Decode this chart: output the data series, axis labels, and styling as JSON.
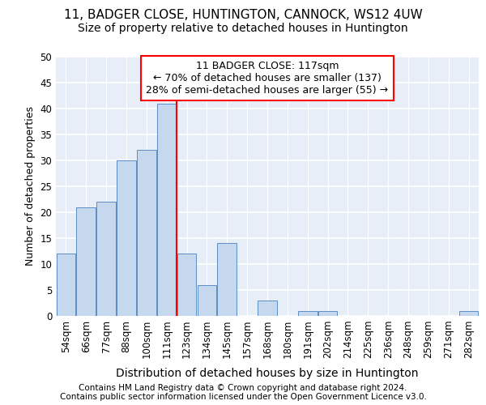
{
  "title1": "11, BADGER CLOSE, HUNTINGTON, CANNOCK, WS12 4UW",
  "title2": "Size of property relative to detached houses in Huntington",
  "xlabel": "Distribution of detached houses by size in Huntington",
  "ylabel": "Number of detached properties",
  "categories": [
    "54sqm",
    "66sqm",
    "77sqm",
    "88sqm",
    "100sqm",
    "111sqm",
    "123sqm",
    "134sqm",
    "145sqm",
    "157sqm",
    "168sqm",
    "180sqm",
    "191sqm",
    "202sqm",
    "214sqm",
    "225sqm",
    "236sqm",
    "248sqm",
    "259sqm",
    "271sqm",
    "282sqm"
  ],
  "values": [
    12,
    21,
    22,
    30,
    32,
    41,
    12,
    6,
    14,
    0,
    3,
    0,
    1,
    1,
    0,
    0,
    0,
    0,
    0,
    0,
    1
  ],
  "bar_color": "#c5d8ee",
  "bar_edge_color": "#5b8ec4",
  "vline_x": 5.5,
  "annotation_text": "11 BADGER CLOSE: 117sqm\n← 70% of detached houses are smaller (137)\n28% of semi-detached houses are larger (55) →",
  "annotation_box_color": "white",
  "annotation_box_edge_color": "red",
  "vline_color": "red",
  "footnote1": "Contains HM Land Registry data © Crown copyright and database right 2024.",
  "footnote2": "Contains public sector information licensed under the Open Government Licence v3.0.",
  "ylim": [
    0,
    50
  ],
  "yticks": [
    0,
    5,
    10,
    15,
    20,
    25,
    30,
    35,
    40,
    45,
    50
  ],
  "bg_color": "#e8eef8",
  "grid_color": "#ffffff",
  "title1_fontsize": 11,
  "title2_fontsize": 10,
  "xlabel_fontsize": 10,
  "ylabel_fontsize": 9,
  "tick_fontsize": 8.5,
  "annotation_fontsize": 9,
  "footnote_fontsize": 7.5
}
